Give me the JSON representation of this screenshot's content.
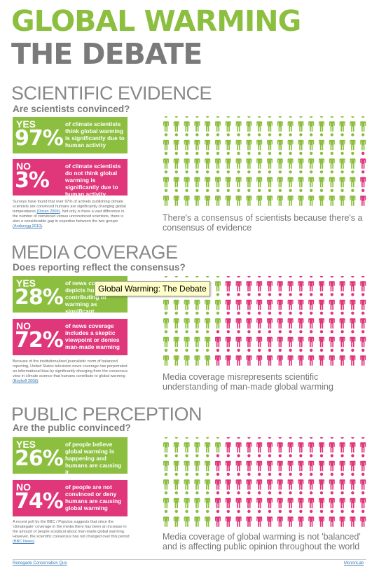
{
  "header": {
    "line1": "GLOBAL WARMING",
    "line2": "THE DEBATE"
  },
  "colors": {
    "green": "#8cbf3f",
    "pink": "#e0367a",
    "gray": "#888888"
  },
  "sections": [
    {
      "title": "SCIENTIFIC EVIDENCE",
      "subtitle": "Are scientists convinced?",
      "yes": {
        "label": "YES",
        "percent": "97%",
        "desc": "of climate scientists think global warming is significantly due to human activity"
      },
      "no": {
        "label": "NO",
        "percent": "3%",
        "desc": "of climate scientists do not think global warming is significantly due to human activity"
      },
      "note": "Surveys have found that over 97% of actively publishing climate scientists are convinced humans are significantly changing global temperatures",
      "note_link1": "(Doran 2009)",
      "note_mid": ". Not only is there a vast difference in the number of convinced versus unconvinced scientists, there is also a considerable gap in expertise between the two groups",
      "note_link2": "(Anderegg 2010)",
      "note_end": ".",
      "grid": {
        "green_count": 97,
        "pink_count": 3
      },
      "caption": "There's a consensus of scientists because there's a consensus of evidence"
    },
    {
      "title": "MEDIA COVERAGE",
      "subtitle": "Does reporting reflect the consensus?",
      "yes": {
        "label": "YES",
        "percent": "28%",
        "desc": "of news coverage depicts humans contributing to warming as significant"
      },
      "no": {
        "label": "NO",
        "percent": "72%",
        "desc": "of news coverage includes a skeptic viewpoint or denies man-made warming"
      },
      "note": "Because of the institutionalized journalistic norm of balanced reporting, United States television news coverage has perpetrated an informational bias by significantly diverging from the consensus view in climate science that humans contribute to global warming",
      "note_link1": "(Boykoff 2008)",
      "note_mid": ".",
      "note_link2": "",
      "note_end": "",
      "grid": {
        "green_count": 28,
        "pink_count": 72
      },
      "caption": "Media coverage misrepresents scientific understanding of man-made global warming"
    },
    {
      "title": "PUBLIC PERCEPTION",
      "subtitle": "Are the public convinced?",
      "yes": {
        "label": "YES",
        "percent": "26%",
        "desc": "of people believe global warming is happening and humans are causing it"
      },
      "no": {
        "label": "NO",
        "percent": "74%",
        "desc": "of people are not convinced or deny humans are causing global warming"
      },
      "note": "A recent poll by the BBC / Populus suggests that since the 'climategate' coverage in the media there has been an increase in the amount of people sceptical about man-made global warming. However, the scientific consensus has not changed over this period",
      "note_link1": "(BBC News)",
      "note_mid": ".",
      "note_link2": "",
      "note_end": "",
      "grid": {
        "green_count": 26,
        "pink_count": 74
      },
      "caption": "Media coverage of global warming is not 'balanced' and is affecting public opinion throughout the world"
    }
  ],
  "footer": {
    "left": "Renegade Conservation Quo",
    "right": "McnnnLab"
  },
  "tooltip": "Global Warming: The Debate"
}
